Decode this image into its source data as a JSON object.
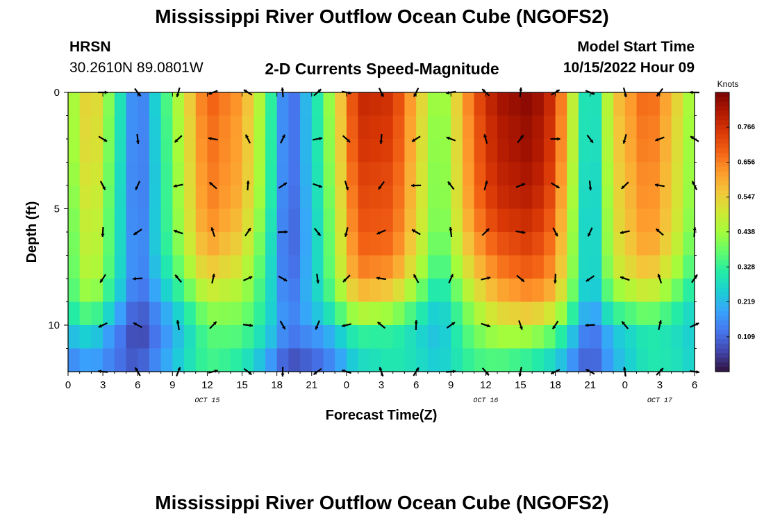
{
  "header": {
    "title": "Mississippi River Outflow Ocean Cube (NGOFS2)",
    "station": "HRSN",
    "coords": "30.2610N  89.0801W",
    "subtitle": "2-D Currents Speed-Magnitude",
    "model_start_label": "Model Start Time",
    "model_start_value": "10/15/2022 Hour 09"
  },
  "footer": {
    "title": "Mississippi River Outflow Ocean Cube (NGOFS2)"
  },
  "chart_data": {
    "type": "heatmap",
    "title": "2-D Currents Speed-Magnitude",
    "xlabel": "Forecast Time(Z)",
    "ylabel": "Depth (ft)",
    "colorbar_label": "Knots",
    "xlim": [
      0,
      54
    ],
    "ylim": [
      0,
      12
    ],
    "x_ticks": [
      0,
      3,
      6,
      9,
      12,
      15,
      18,
      21,
      24,
      27,
      30,
      33,
      36,
      39,
      42,
      45,
      48,
      51,
      54
    ],
    "x_tick_labels": [
      "0",
      "3",
      "6",
      "9",
      "12",
      "15",
      "18",
      "21",
      "0",
      "3",
      "6",
      "9",
      "12",
      "15",
      "18",
      "21",
      "0",
      "3",
      "6"
    ],
    "date_labels": [
      {
        "x": 12,
        "text": "OCT 15"
      },
      {
        "x": 36,
        "text": "OCT 16"
      },
      {
        "x": 51,
        "text": "OCT 17"
      }
    ],
    "y_ticks": [
      0,
      5,
      10
    ],
    "y_tick_labels": [
      "0",
      "5",
      "10"
    ],
    "colorbar_ticks": [
      0.109,
      0.219,
      0.328,
      0.438,
      0.547,
      0.656,
      0.766
    ],
    "colorbar_range": [
      0.0,
      0.875
    ],
    "colors": [
      "#30123b",
      "#4145ab",
      "#4675ed",
      "#39a2fc",
      "#1bcfd4",
      "#24eca6",
      "#61fc6c",
      "#a4fc3b",
      "#d1e834",
      "#f3c63a",
      "#fe9b2d",
      "#f36315",
      "#d93806",
      "#b11901",
      "#7a0403"
    ],
    "time_knots": [
      0,
      2,
      4,
      6,
      9,
      12,
      15,
      17,
      19,
      22,
      25,
      28,
      30,
      32,
      35,
      37,
      40,
      42,
      45,
      47,
      50,
      52,
      54
    ],
    "surface_speed": [
      0.4,
      0.58,
      0.35,
      0.1,
      0.4,
      0.7,
      0.62,
      0.4,
      0.08,
      0.35,
      0.78,
      0.76,
      0.58,
      0.38,
      0.7,
      0.82,
      0.86,
      0.75,
      0.2,
      0.55,
      0.7,
      0.58,
      0.4
    ],
    "depth_factor": [
      1.0,
      1.0,
      0.98,
      0.97,
      0.95,
      0.93,
      0.9,
      0.86,
      0.8,
      0.7,
      0.55,
      0.4,
      0.32
    ],
    "arrow_depths": [
      0,
      2,
      4,
      6,
      8,
      10,
      12
    ],
    "arrow_times": [
      3,
      6,
      9.5,
      12.5,
      15.5,
      18.5,
      21.5,
      24,
      27,
      30,
      33,
      36,
      39,
      42,
      45,
      48,
      51,
      54
    ]
  }
}
